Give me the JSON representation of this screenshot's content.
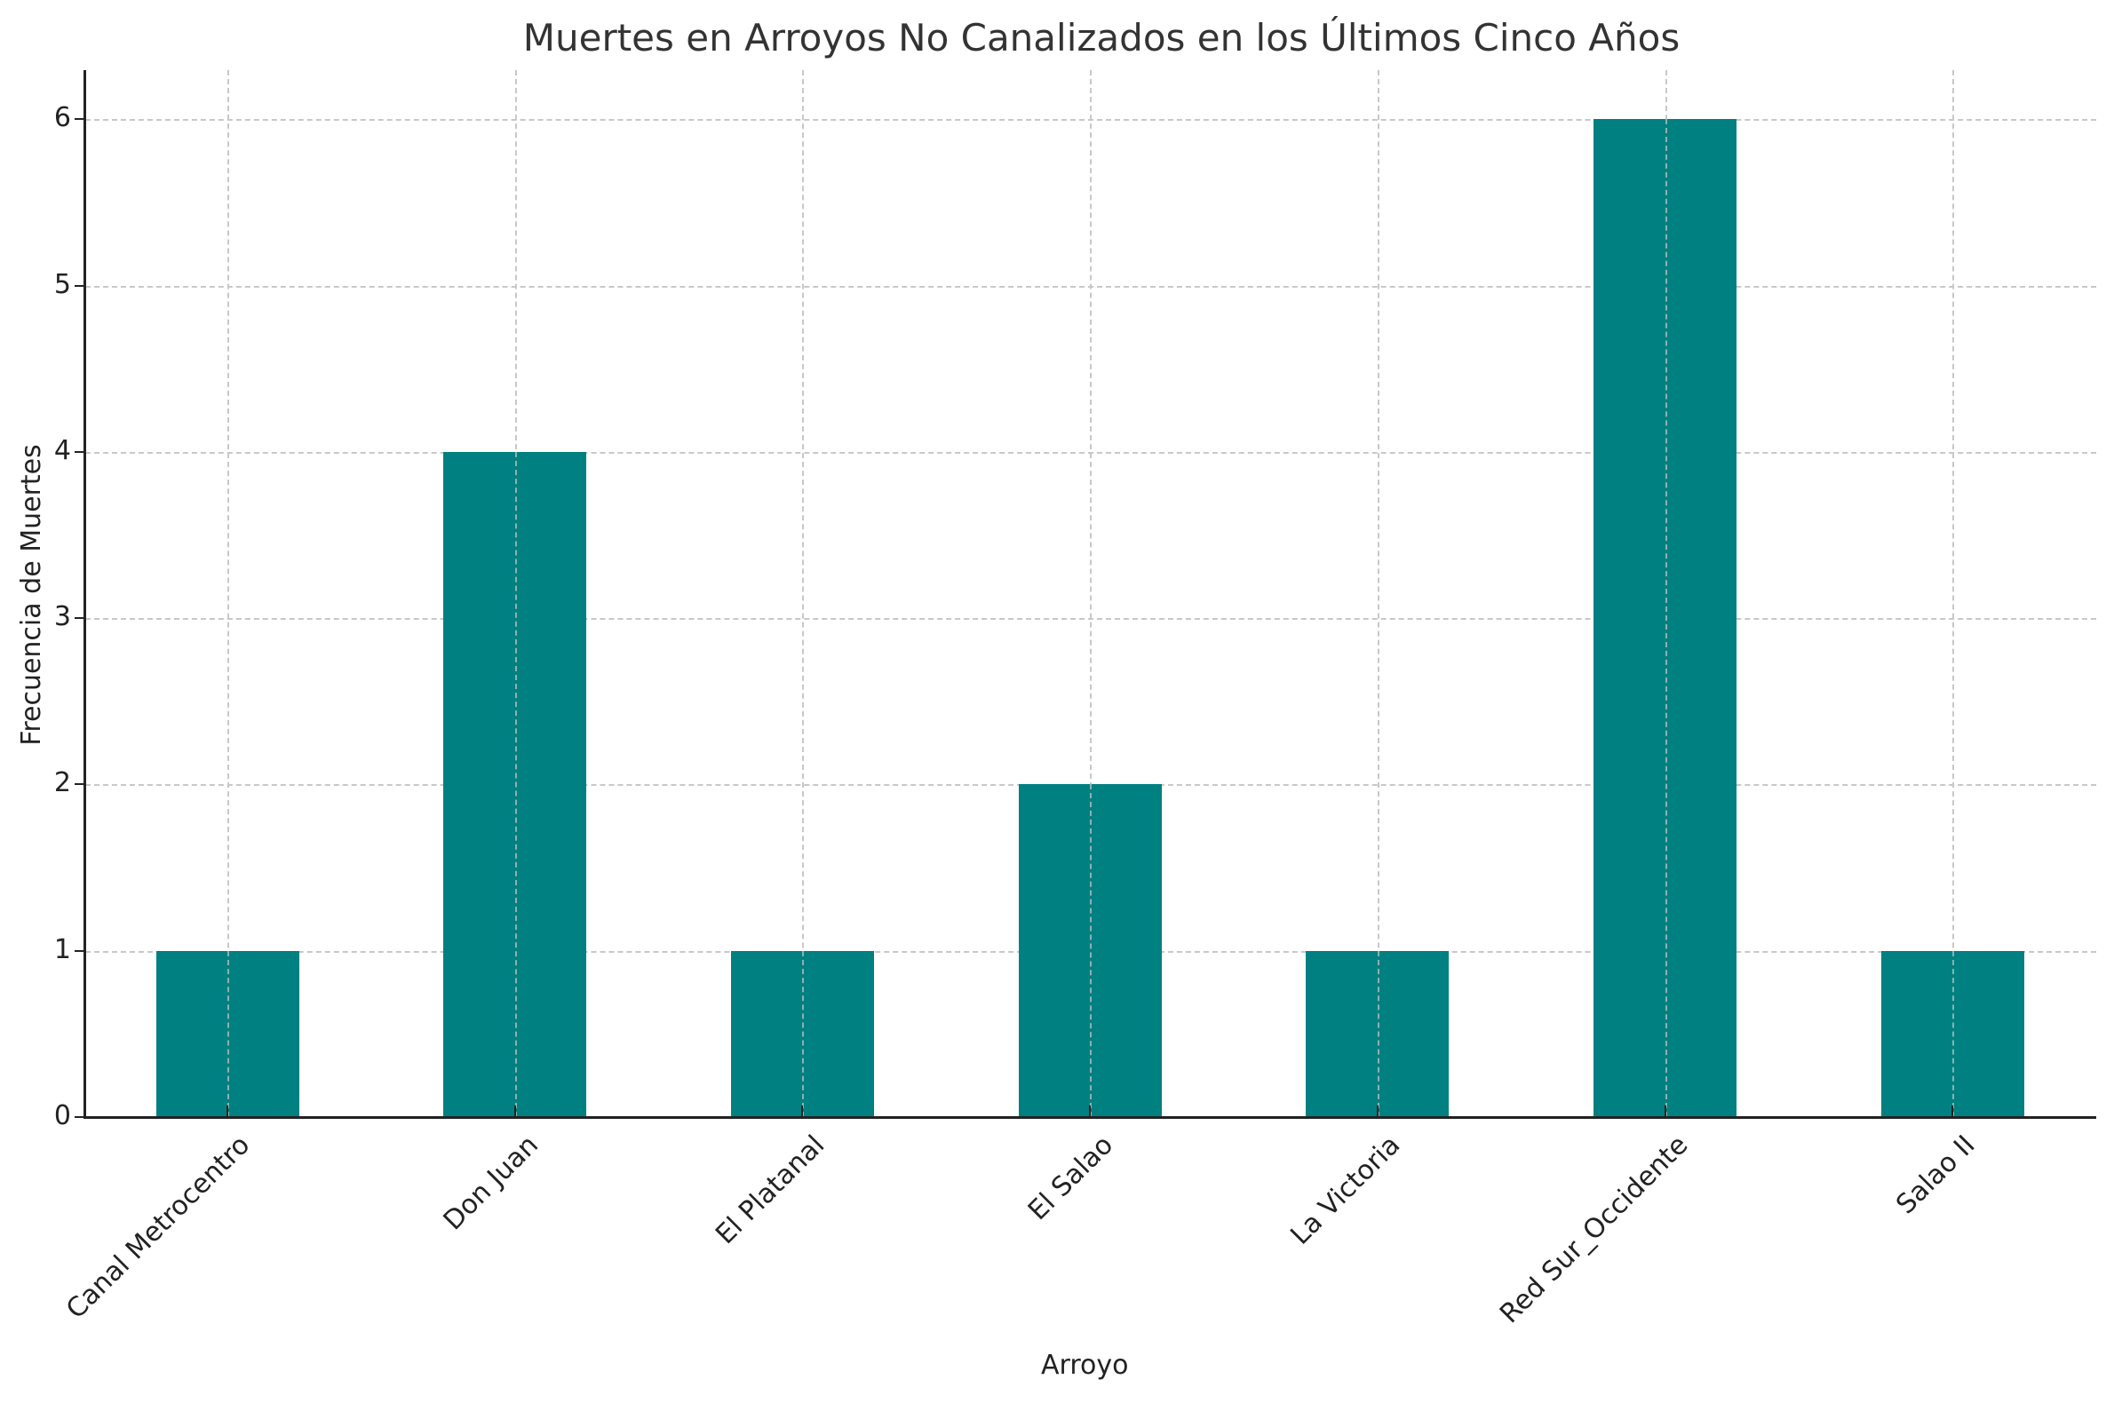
{
  "chart_data": {
    "type": "bar",
    "title": "Muertes en Arroyos No Canalizados en los Últimos Cinco Años",
    "xlabel": "Arroyo",
    "ylabel": "Frecuencia de Muertes",
    "categories": [
      "Canal Metrocentro",
      "Don Juan",
      "El Platanal",
      "El Salao",
      "La Victoria",
      "Red Sur_Occidente",
      "Salao II"
    ],
    "values": [
      1,
      4,
      1,
      2,
      1,
      6,
      1
    ],
    "ylim": [
      0,
      6.3
    ],
    "yticks": [
      "0",
      "1",
      "2",
      "3",
      "4",
      "5",
      "6"
    ],
    "bar_color": "#008080",
    "grid": true,
    "legend": null
  }
}
